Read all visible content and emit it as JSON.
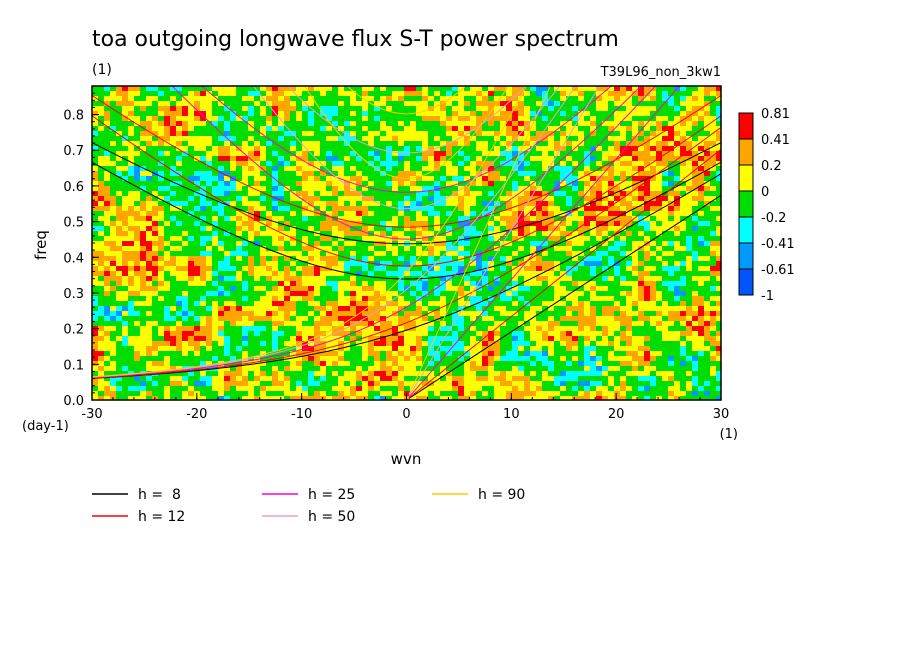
{
  "chart_data": {
    "type": "heatmap",
    "title": "toa outgoing longwave flux S-T power spectrum",
    "title_units": "(1)",
    "run_label": "T39L96_non_3kw1",
    "xlabel": "wvn",
    "x_units": "(1)",
    "ylabel": "freq",
    "y_units": "(day-1)",
    "xlim": [
      -30,
      30
    ],
    "ylim": [
      0,
      0.88
    ],
    "xticks": [
      "-30",
      "-20",
      "-10",
      "0",
      "10",
      "20",
      "30"
    ],
    "yticks": [
      "0.0",
      "0.1",
      "0.2",
      "0.3",
      "0.4",
      "0.5",
      "0.6",
      "0.7",
      "0.8"
    ],
    "colorbar": {
      "labels": [
        "0.81",
        "0.41",
        "0.2",
        "0",
        "-0.2",
        "-0.41",
        "-0.61",
        "-1"
      ],
      "colors": [
        "#ff0000",
        "#ffa500",
        "#ffff00",
        "#00dd00",
        "#00ffff",
        "#0099ff",
        "#0055ff"
      ]
    },
    "series": [
      {
        "name": "h =  8",
        "color": "#000000",
        "h": 8
      },
      {
        "name": "h = 12",
        "color": "#ff0000",
        "h": 12
      },
      {
        "name": "h = 25",
        "color": "#ff00cc",
        "h": 25
      },
      {
        "name": "h = 50",
        "color": "#e0a0e0",
        "h": 50
      },
      {
        "name": "h = 90",
        "color": "#ffcc00",
        "h": 90
      }
    ],
    "legend_position": "bottom"
  }
}
